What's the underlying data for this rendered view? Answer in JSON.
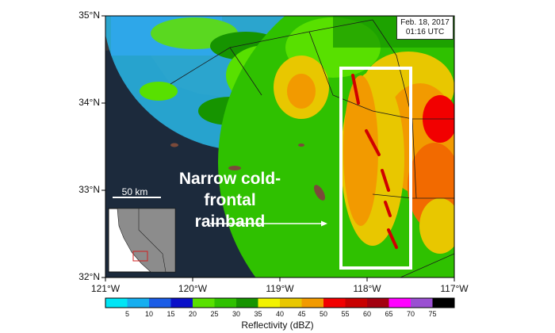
{
  "map": {
    "latitude_labels": [
      "35°N",
      "34°N",
      "33°N",
      "32°N"
    ],
    "longitude_labels": [
      "121°W",
      "120°W",
      "119°W",
      "118°W",
      "117°W"
    ],
    "timestamp_line1": "Feb. 18, 2017",
    "timestamp_line2": "01:16 UTC",
    "annotation_line1": "Narrow cold-frontal",
    "annotation_line2": "rainband",
    "scale_bar_label": "50 km",
    "colors": {
      "ocean": "#1c2a3c",
      "land": "#3a3a3e",
      "highlight_box": "#ffffff",
      "inset_land": "#8c8c8c",
      "inset_box": "#d02020"
    }
  },
  "colorbar": {
    "title": "Reflectivity (dBZ)",
    "ticks": [
      "5",
      "10",
      "15",
      "20",
      "25",
      "30",
      "35",
      "40",
      "45",
      "50",
      "55",
      "60",
      "65",
      "70",
      "75"
    ],
    "colors": [
      "#00e5f5",
      "#16aef0",
      "#1a5ce6",
      "#0a10c8",
      "#58e000",
      "#2fc100",
      "#169400",
      "#f2f200",
      "#e8c700",
      "#f29a00",
      "#f20000",
      "#c80000",
      "#a30010",
      "#ff00ff",
      "#9a4fd2",
      "#000000"
    ]
  }
}
